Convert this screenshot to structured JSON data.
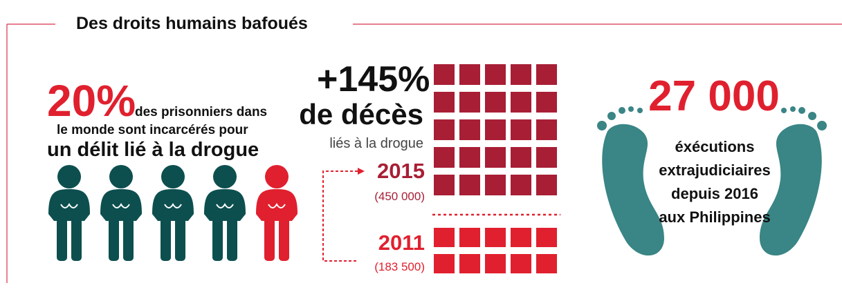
{
  "header": {
    "title": "Des droits humains bafoués"
  },
  "panels": [
    {
      "figure": "20%",
      "lines": [
        "des prisonniers dans",
        "le monde sont incarcérés pour",
        "un délit lié à la drogue"
      ]
    },
    {
      "figure": "+145%",
      "subtitle": "de décès",
      "caption": "liés à la drogue",
      "years": [
        {
          "year": "2015",
          "count": "(450 000)"
        },
        {
          "year": "2011",
          "count": "(183 500)"
        }
      ]
    },
    {
      "figure": "27 000",
      "lines": [
        "éxécutions",
        "extrajudiciaires",
        "depuis 2016",
        "aux Philippines"
      ]
    }
  ]
}
